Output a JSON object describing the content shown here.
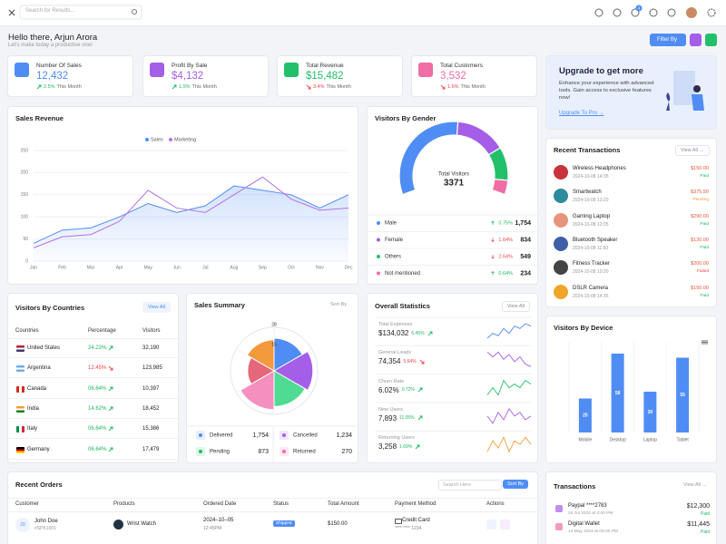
{
  "header": {
    "search_placeholder": "Search for Results...",
    "notification_count": 4
  },
  "greeting": {
    "title": "Hello there, Arjun Arora",
    "subtitle": "Let's make today a productive one!",
    "filter_button": "Filter By"
  },
  "stats": [
    {
      "label": "Number Of Sales",
      "value": "12,432",
      "change": "2.5%",
      "period": "This Month",
      "direction": "up",
      "color": "#4f8df5"
    },
    {
      "label": "Profit By Sale",
      "value": "$4,132",
      "change": "1.5%",
      "period": "This Month",
      "direction": "up",
      "color": "#a55ee8"
    },
    {
      "label": "Total Revenue",
      "value": "$15,482",
      "change": "3.4%",
      "period": "This Month",
      "direction": "down",
      "color": "#22c06a"
    },
    {
      "label": "Total Customers",
      "value": "3,532",
      "change": "1.6%",
      "period": "This Month",
      "direction": "down",
      "color": "#f06da6"
    }
  ],
  "upgrade": {
    "title": "Upgrade to get more",
    "text": "Enhance your experience with advanced tools. Gain access to exclusive features now!",
    "link": "Upgrade To Pro →"
  },
  "sales_revenue": {
    "title": "Sales Revenue",
    "chart": {
      "type": "line",
      "categories": [
        "Jan",
        "Feb",
        "Mar",
        "Apr",
        "May",
        "Jun",
        "Jul",
        "Aug",
        "Sep",
        "Oct",
        "Nov",
        "Dec"
      ],
      "series": [
        {
          "name": "Sales",
          "color": "#4f8df5",
          "area": true,
          "values": [
            40,
            70,
            75,
            100,
            130,
            110,
            125,
            170,
            160,
            150,
            120,
            150
          ]
        },
        {
          "name": "Marketing",
          "color": "#b472e6",
          "values": [
            30,
            55,
            60,
            90,
            160,
            120,
            110,
            150,
            190,
            140,
            115,
            120
          ]
        }
      ],
      "ylim": [
        0,
        250
      ],
      "yticks": [
        0,
        50,
        100,
        150,
        200,
        250
      ],
      "grid": true
    }
  },
  "visitors_by_gender": {
    "title": "Visitors By Gender",
    "center_label": "Total Visitors",
    "total": 3371,
    "chart": {
      "type": "donut",
      "categories": [
        "Male",
        "Female",
        "Others",
        "Not mentioned"
      ],
      "values": [
        1754,
        834,
        549,
        234
      ],
      "value_labels": [
        "1,754",
        "834",
        "549",
        "234"
      ],
      "colors": [
        "#4f8df5",
        "#a55ee8",
        "#22c06a",
        "#f06da6"
      ],
      "changes": [
        "0.75%",
        "1.64%",
        "2.64%",
        "0.64%"
      ],
      "directions": [
        "up",
        "down",
        "down",
        "up"
      ]
    }
  },
  "recent_transactions": {
    "title": "Recent Transactions",
    "view_all": "View All →",
    "items": [
      {
        "name": "Wireless Headphones",
        "date": "2024-10-08 14:35",
        "amount": "$150.00",
        "status": "Paid"
      },
      {
        "name": "Smartwatch",
        "date": "2024-10-08 13:20",
        "amount": "$375.50",
        "status": "Pending"
      },
      {
        "name": "Gaming Laptop",
        "date": "2024-10-08 12:05",
        "amount": "$290.00",
        "status": "Paid"
      },
      {
        "name": "Bluetooth Speaker",
        "date": "2024-10-08 11:50",
        "amount": "$120.00",
        "status": "Paid"
      },
      {
        "name": "Fitness Tracker",
        "date": "2024-10-08 10:30",
        "amount": "$200.00",
        "status": "Failed"
      },
      {
        "name": "DSLR Camera",
        "date": "2024-10-08 14:35",
        "amount": "$150.00",
        "status": "Paid"
      }
    ]
  },
  "visitors_by_countries": {
    "title": "Visitors By Countries",
    "view_all": "View All",
    "columns": [
      "Countries",
      "Percentage",
      "Visitors"
    ],
    "rows": [
      {
        "country": "United States",
        "percentage": "24.23%",
        "direction": "up",
        "visitors": "32,190"
      },
      {
        "country": "Argentina",
        "percentage": "12.45%",
        "direction": "down",
        "visitors": "123,985"
      },
      {
        "country": "Canada",
        "percentage": "06.64%",
        "direction": "up",
        "visitors": "10,397"
      },
      {
        "country": "India",
        "percentage": "14.62%",
        "direction": "up",
        "visitors": "18,452"
      },
      {
        "country": "Italy",
        "percentage": "06.64%",
        "direction": "up",
        "visitors": "15,386"
      },
      {
        "country": "Germany",
        "percentage": "06.64%",
        "direction": "up",
        "visitors": "17,479"
      }
    ]
  },
  "sales_summary": {
    "title": "Sales Summary",
    "sort_button": "Sort By",
    "chart": {
      "type": "polar",
      "values": [
        21,
        25,
        23,
        25,
        17,
        20
      ],
      "colors": [
        "#4f8df5",
        "#a55ee8",
        "#4fdb92",
        "#f48fc0",
        "#e4687a",
        "#f39a3d"
      ],
      "rlim": [
        0,
        28
      ],
      "rticks": [
        15,
        28
      ]
    },
    "summary": [
      {
        "label": "Delivered",
        "value": "1,754"
      },
      {
        "label": "Cancelled",
        "value": "1,234"
      },
      {
        "label": "Pending",
        "value": "873"
      },
      {
        "label": "Returned",
        "value": "270"
      }
    ]
  },
  "overall_statistics": {
    "title": "Overall Statistics",
    "view_all": "View All",
    "items": [
      {
        "label": "Total Expenses",
        "value": "$134,032",
        "change": "6.45%",
        "direction": "up",
        "color": "#4f8df5",
        "trend": [
          4,
          5,
          4.5,
          6,
          5,
          6.5,
          6,
          7,
          6.5
        ]
      },
      {
        "label": "General Leads",
        "value": "74,354",
        "change": "5.64%",
        "direction": "down",
        "color": "#a55ee8",
        "trend": [
          6,
          5,
          6,
          4.5,
          5.5,
          4,
          5,
          3.5,
          3
        ]
      },
      {
        "label": "Churn Rate",
        "value": "6.02%",
        "change": "0.72%",
        "direction": "up",
        "color": "#22c06a",
        "trend": [
          4,
          5,
          4,
          6,
          5,
          5.5,
          5,
          6,
          5.5
        ]
      },
      {
        "label": "New Users",
        "value": "7,893",
        "change": "11.05%",
        "direction": "up",
        "color": "#a55ee8",
        "trend": [
          5,
          4,
          5.5,
          4.5,
          6,
          5,
          5.5,
          4.5,
          5
        ]
      },
      {
        "label": "Returning Users",
        "value": "3,258",
        "change": "1.69%",
        "direction": "up",
        "color": "#f39a3d",
        "trend": [
          4,
          5.5,
          4.5,
          6,
          4,
          5.5,
          5,
          6,
          5
        ]
      }
    ]
  },
  "visitors_by_device": {
    "title": "Visitors By Device",
    "chart": {
      "type": "bar",
      "categories": [
        "Mobile",
        "Desktop",
        "Laptop",
        "Tablet"
      ],
      "values": [
        25,
        58,
        30,
        55
      ],
      "ylim": [
        0,
        60
      ],
      "color": "#4f8df5"
    }
  },
  "recent_orders": {
    "title": "Recent Orders",
    "search_placeholder": "Search Here",
    "sort_button": "Sort By",
    "columns": [
      "Customer",
      "Products",
      "Ordered Date",
      "Status",
      "Total Amount",
      "Payment Method",
      "Actions"
    ],
    "rows": [
      {
        "initials": "JD",
        "customer": "John Doe",
        "id": "#SPK1001",
        "product": "Wrist Watch",
        "date": "2024–10–05",
        "time": "12:45PM",
        "status": "Shipped",
        "amount": "$150.00",
        "payment": "Credit Card",
        "card_number": "**** **** 1234"
      }
    ]
  },
  "transactions": {
    "title": "Transactions",
    "view_all": "View All →",
    "items": [
      {
        "name": "Paypal ****2783",
        "date": "24 Jul 2024 at 2:00 PM",
        "amount": "$12,300",
        "status": "Paid"
      },
      {
        "name": "Digital Wallet",
        "date": "13 May 2024 at 05:00 PM",
        "amount": "$11,445",
        "status": "Paid"
      }
    ]
  }
}
